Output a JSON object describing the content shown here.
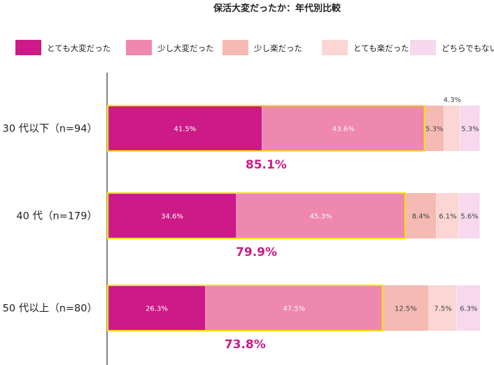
{
  "chart_data": {
    "type": "bar",
    "orientation": "horizontal",
    "stacked": true,
    "title": "保活大変だったか：年代別比較",
    "categories": [
      "30 代以下（n=94）",
      "40 代（n=179）",
      "50 代以上（n=80）"
    ],
    "series": [
      {
        "name": "とても大変だった",
        "color": "#cc1a86",
        "values": [
          41.5,
          34.6,
          26.3
        ],
        "labels": [
          "41.5%",
          "34.6%",
          "26.3%"
        ]
      },
      {
        "name": "少し大変だった",
        "color": "#ee88ae",
        "values": [
          43.6,
          45.3,
          47.5
        ],
        "labels": [
          "43.6%",
          "45.3%",
          "47.5%"
        ]
      },
      {
        "name": "少し楽だった",
        "color": "#f5bab4",
        "values": [
          5.3,
          8.4,
          12.5
        ],
        "labels": [
          "5.3%",
          "8.4%",
          "12.5%"
        ]
      },
      {
        "name": "とても楽だった",
        "color": "#fbd6d4",
        "values": [
          4.3,
          6.1,
          7.5
        ],
        "labels": [
          "4.3%",
          "6.1%",
          "7.5%"
        ]
      },
      {
        "name": "どちらでもない",
        "color": "#f8d8ee",
        "values": [
          5.3,
          5.6,
          6.3
        ],
        "labels": [
          "5.3%",
          "5.6%",
          "6.3%"
        ]
      }
    ],
    "totals": {
      "values": [
        85.1,
        79.9,
        73.8
      ],
      "labels": [
        "85.1%",
        "79.9%",
        "73.8%"
      ],
      "color": "#cc1a86",
      "highlight_color": "#f2e21e"
    },
    "xlim": [
      0,
      100
    ],
    "grid": false,
    "legend": "top"
  }
}
